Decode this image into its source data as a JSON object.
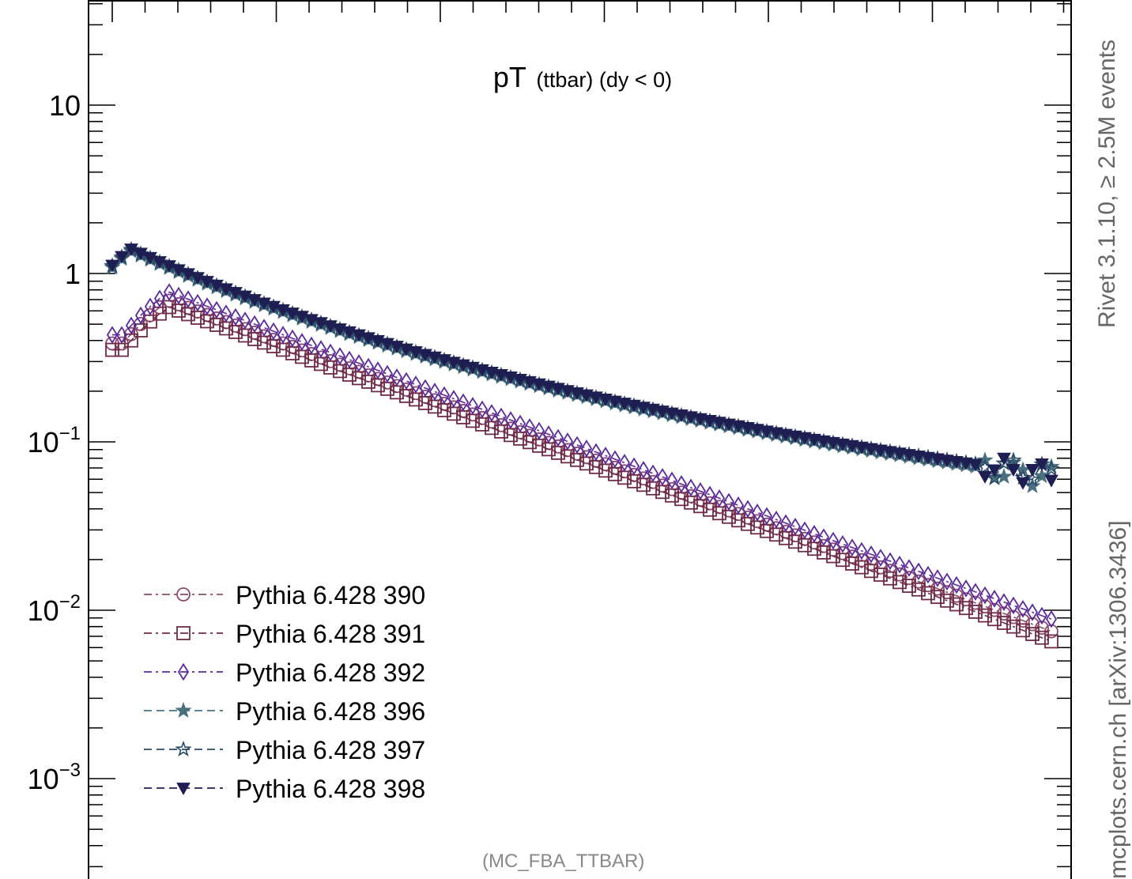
{
  "page": {
    "side_label_top": "Rivet 3.1.10, ≥ 2.5M events",
    "side_label_bottom": "mcplots.cern.ch [arXiv:1306.3436]",
    "analysis_id": "(MC_FBA_TTBAR)"
  },
  "chart_data": {
    "type": "line",
    "subtitle_main": "pT",
    "subtitle_rest": "(ttbar) (dy < 0)",
    "xlabel": "",
    "ylabel": "",
    "yscale": "log",
    "ylim": [
      0.0003,
      40
    ],
    "xlim": [
      0,
      1
    ],
    "yticks": [
      {
        "value": 10,
        "base": "10",
        "exp": ""
      },
      {
        "value": 1,
        "base": "1",
        "exp": ""
      },
      {
        "value": 0.1,
        "base": "10",
        "exp": "−1"
      },
      {
        "value": 0.01,
        "base": "10",
        "exp": "−2"
      },
      {
        "value": 0.001,
        "base": "10",
        "exp": "−3"
      }
    ],
    "grid": false,
    "legend_position": "bottom-left",
    "series": [
      {
        "name": "Pythia 6.428 390",
        "color": "#8a4a6a",
        "dash": "dashdot",
        "marker": "circle-open",
        "group": "A",
        "scale": 0.96,
        "tail": 1.0
      },
      {
        "name": "Pythia 6.428 391",
        "color": "#6e2a48",
        "dash": "dashdot",
        "marker": "square-open",
        "group": "A",
        "scale": 0.88,
        "tail": 0.95
      },
      {
        "name": "Pythia 6.428 392",
        "color": "#5a2a9a",
        "dash": "dashdot",
        "marker": "diamond-open",
        "group": "A",
        "scale": 1.08,
        "tail": 1.05
      },
      {
        "name": "Pythia 6.428 396",
        "color": "#4a7080",
        "dash": "dashed",
        "marker": "star-filled",
        "group": "B",
        "scale": 0.97,
        "tail": 1.0
      },
      {
        "name": "Pythia 6.428 397",
        "color": "#2a4a66",
        "dash": "dashed",
        "marker": "star-open",
        "group": "B",
        "scale": 0.99,
        "tail": 1.02
      },
      {
        "name": "Pythia 6.428 398",
        "color": "#1e1e52",
        "dash": "dashed",
        "marker": "triangle-down-filled",
        "group": "B",
        "scale": 1.0,
        "tail": 1.0
      }
    ]
  }
}
